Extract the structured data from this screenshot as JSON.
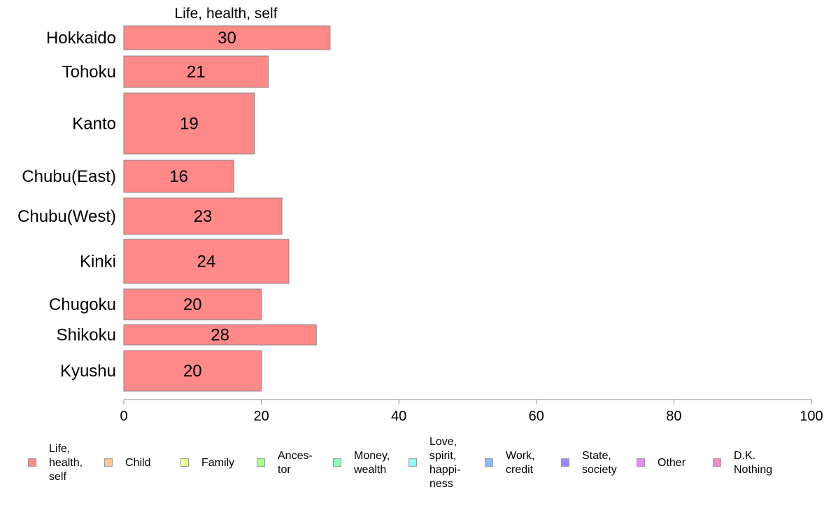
{
  "chart_data": {
    "type": "bar",
    "orientation": "horizontal",
    "title": "Life, health, self",
    "categories": [
      "Hokkaido",
      "Tohoku",
      "Kanto",
      "Chubu(East)",
      "Chubu(West)",
      "Kinki",
      "Chugoku",
      "Shikoku",
      "Kyushu"
    ],
    "series": [
      {
        "values": [
          30,
          21,
          19,
          16,
          23,
          24,
          20,
          28,
          20
        ],
        "color": "#ff8888"
      }
    ],
    "data_labels": [
      "30",
      "21",
      "19",
      "16",
      "23",
      "24",
      "20",
      "28",
      "20"
    ],
    "xlim": [
      0,
      100
    ],
    "xticks": [
      "0",
      "20",
      "40",
      "60",
      "80",
      "100"
    ],
    "grid": false,
    "legend_position": "bottom"
  },
  "legend": [
    {
      "label": "Life,\nhealth,\nself",
      "color": "#ff8888"
    },
    {
      "label": "Child",
      "color": "#ffc888"
    },
    {
      "label": "Family",
      "color": "#eeff88"
    },
    {
      "label": "Ances-\ntor",
      "color": "#aaff88"
    },
    {
      "label": "Money,\nwealth",
      "color": "#88ffbb"
    },
    {
      "label": "Love,\nspirit,\nhappi-\nness",
      "color": "#88ffff"
    },
    {
      "label": "Work,\ncredit",
      "color": "#88bbff"
    },
    {
      "label": "State,\nsociety",
      "color": "#9988ff"
    },
    {
      "label": "Other",
      "color": "#ee88ff"
    },
    {
      "label": "D.K.\nNothing",
      "color": "#ff88cc"
    }
  ]
}
